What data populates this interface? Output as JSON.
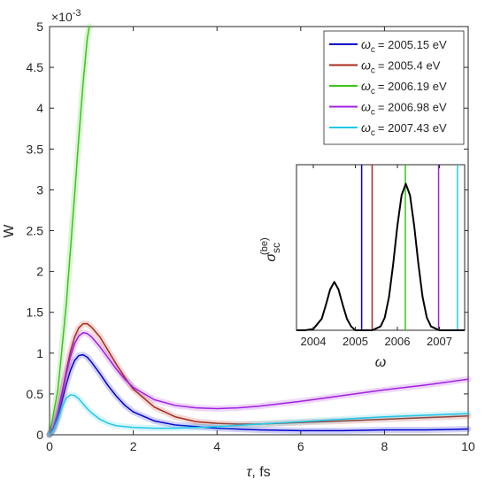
{
  "chart_data": [
    {
      "type": "line",
      "xlabel_symbol": "τ",
      "xlabel_unit": ", fs",
      "ylabel": "W",
      "y_exponent_base": "×10",
      "y_exponent_power": "-3",
      "xlim": [
        0,
        10
      ],
      "ylim": [
        0,
        5
      ],
      "xticks": [
        0,
        2,
        4,
        6,
        8,
        10
      ],
      "xtick_labels": [
        "0",
        "2",
        "4",
        "6",
        "8",
        "10"
      ],
      "yticks": [
        0,
        0.5,
        1,
        1.5,
        2,
        2.5,
        3,
        3.5,
        4,
        4.5,
        5
      ],
      "ytick_labels": [
        "0",
        "0.5",
        "1",
        "1.5",
        "2",
        "2.5",
        "3",
        "3.5",
        "4",
        "4.5",
        "5"
      ],
      "grid": false,
      "legend_position": "top-right",
      "legend_symbol": "ω",
      "legend_subscript": "c",
      "series": [
        {
          "name": "= 2005.15 eV",
          "color": "#0000cc",
          "x": [
            0,
            0.1,
            0.2,
            0.3,
            0.4,
            0.5,
            0.6,
            0.7,
            0.8,
            0.9,
            1.0,
            1.2,
            1.4,
            1.6,
            1.8,
            2.0,
            2.5,
            3.0,
            3.5,
            4.0,
            5.0,
            6.0,
            7.0,
            8.0,
            9.0,
            10.0
          ],
          "y": [
            0,
            0.07,
            0.22,
            0.42,
            0.62,
            0.79,
            0.91,
            0.97,
            0.98,
            0.95,
            0.89,
            0.75,
            0.6,
            0.47,
            0.36,
            0.28,
            0.17,
            0.12,
            0.1,
            0.08,
            0.06,
            0.05,
            0.05,
            0.06,
            0.06,
            0.07
          ]
        },
        {
          "name": "= 2005.4 eV",
          "color": "#aa2a1a",
          "x": [
            0,
            0.1,
            0.2,
            0.3,
            0.4,
            0.5,
            0.6,
            0.7,
            0.8,
            0.9,
            1.0,
            1.2,
            1.4,
            1.6,
            1.8,
            2.0,
            2.5,
            3.0,
            3.5,
            4.0,
            4.5,
            5.0,
            6.0,
            7.0,
            8.0,
            9.0,
            10.0
          ],
          "y": [
            0,
            0.1,
            0.28,
            0.52,
            0.78,
            1.02,
            1.2,
            1.31,
            1.36,
            1.36,
            1.32,
            1.2,
            1.03,
            0.86,
            0.7,
            0.56,
            0.34,
            0.22,
            0.16,
            0.14,
            0.13,
            0.13,
            0.15,
            0.17,
            0.19,
            0.21,
            0.23
          ]
        },
        {
          "name": "= 2006.19 eV",
          "color": "#3cc41a",
          "x": [
            0,
            0.2,
            0.4,
            0.6,
            0.7,
            0.8,
            0.9,
            0.95
          ],
          "y": [
            0,
            0.55,
            1.6,
            2.95,
            3.65,
            4.3,
            4.85,
            5.0
          ]
        },
        {
          "name": "= 2006.98 eV",
          "color": "#a020e0",
          "x": [
            0,
            0.1,
            0.2,
            0.3,
            0.4,
            0.5,
            0.6,
            0.7,
            0.8,
            0.9,
            1.0,
            1.2,
            1.4,
            1.6,
            1.8,
            2.0,
            2.5,
            3.0,
            3.5,
            4.0,
            4.5,
            5.0,
            6.0,
            7.0,
            8.0,
            9.0,
            10.0
          ],
          "y": [
            0,
            0.1,
            0.27,
            0.5,
            0.75,
            0.96,
            1.12,
            1.21,
            1.25,
            1.24,
            1.2,
            1.08,
            0.94,
            0.8,
            0.68,
            0.58,
            0.43,
            0.36,
            0.33,
            0.32,
            0.33,
            0.35,
            0.41,
            0.48,
            0.55,
            0.61,
            0.68
          ]
        },
        {
          "name": "= 2007.43 eV",
          "color": "#22c8e8",
          "x": [
            0,
            0.1,
            0.2,
            0.3,
            0.4,
            0.5,
            0.6,
            0.7,
            0.8,
            0.9,
            1.0,
            1.2,
            1.4,
            1.6,
            1.8,
            2.0,
            2.5,
            3.0,
            3.5,
            4.0,
            5.0,
            6.0,
            7.0,
            8.0,
            9.0,
            10.0
          ],
          "y": [
            0,
            0.06,
            0.19,
            0.34,
            0.45,
            0.49,
            0.48,
            0.44,
            0.38,
            0.32,
            0.27,
            0.19,
            0.14,
            0.11,
            0.1,
            0.09,
            0.08,
            0.08,
            0.09,
            0.1,
            0.13,
            0.16,
            0.19,
            0.22,
            0.24,
            0.26
          ]
        }
      ]
    },
    {
      "type": "line",
      "xlabel": "ω",
      "ylabel_symbol": "σ",
      "ylabel_sub": "sc",
      "ylabel_sup": "(be)",
      "xlim": [
        2003.6,
        2007.6
      ],
      "ylim": [
        0,
        1.3
      ],
      "xticks": [
        2004,
        2005,
        2006,
        2007
      ],
      "xtick_labels": [
        "2004",
        "2005",
        "2006",
        "2007"
      ],
      "grid": false,
      "curve": {
        "color": "#000000",
        "x": [
          2003.6,
          2003.8,
          2004.0,
          2004.2,
          2004.3,
          2004.4,
          2004.5,
          2004.6,
          2004.7,
          2004.8,
          2004.9,
          2005.0,
          2005.2,
          2005.4,
          2005.6,
          2005.7,
          2005.8,
          2005.9,
          2006.0,
          2006.1,
          2006.2,
          2006.3,
          2006.4,
          2006.5,
          2006.6,
          2006.7,
          2006.8,
          2007.0,
          2007.3,
          2007.6
        ],
        "y": [
          0.0,
          0.0,
          0.01,
          0.09,
          0.2,
          0.32,
          0.38,
          0.32,
          0.2,
          0.09,
          0.03,
          0.0,
          0.0,
          0.0,
          0.03,
          0.1,
          0.26,
          0.52,
          0.82,
          1.06,
          1.15,
          1.06,
          0.82,
          0.52,
          0.26,
          0.1,
          0.03,
          0.0,
          0.0,
          0.0
        ]
      },
      "markers": [
        {
          "x": 2005.15,
          "color": "#0000cc"
        },
        {
          "x": 2005.4,
          "color": "#aa2a1a"
        },
        {
          "x": 2006.19,
          "color": "#3cc41a"
        },
        {
          "x": 2006.98,
          "color": "#a020e0"
        },
        {
          "x": 2007.43,
          "color": "#22c8e8"
        }
      ]
    }
  ]
}
